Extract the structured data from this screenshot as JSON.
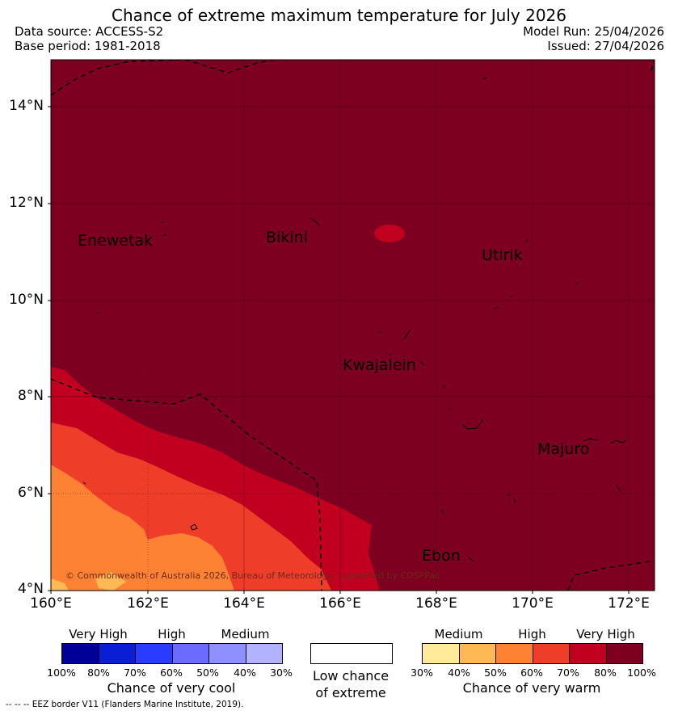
{
  "title": "Chance of extreme maximum temperature for July 2026",
  "meta": {
    "data_source": "Data source: ACCESS-S2",
    "base_period": "Base period: 1981-2018",
    "model_run": "Model Run: 25/04/2026",
    "issued": "Issued: 27/04/2026"
  },
  "axes": {
    "lat_ticks": [
      "14°N",
      "12°N",
      "10°N",
      "8°N",
      "6°N",
      "4°N"
    ],
    "lon_ticks": [
      "160°E",
      "162°E",
      "164°E",
      "166°E",
      "168°E",
      "170°E",
      "172°E"
    ]
  },
  "places": {
    "enewetak": "Enewetak",
    "bikini": "Bikini",
    "utirik": "Utirik",
    "kwajalein": "Kwajalein",
    "majuro": "Majuro",
    "ebon": "Ebon"
  },
  "copyright": "© Commonwealth of Australia 2026, Bureau of Meteorology, supported by COSPPac",
  "legend": {
    "cool": {
      "headings": [
        "Very High",
        "High",
        "Medium"
      ],
      "percents": [
        "100%",
        "80%",
        "70%",
        "60%",
        "50%",
        "40%",
        "30%"
      ],
      "colors": [
        "#000099",
        "#0a1ed6",
        "#2a3cff",
        "#6b6bff",
        "#8f8fff",
        "#b2b2ff"
      ],
      "title": "Chance of very cool"
    },
    "low": {
      "line1": "Low chance",
      "line2": "of extreme"
    },
    "warm": {
      "headings": [
        "Medium",
        "High",
        "Very High"
      ],
      "percents": [
        "30%",
        "40%",
        "50%",
        "60%",
        "70%",
        "80%",
        "100%"
      ],
      "colors": [
        "#ffeb99",
        "#feb954",
        "#fd8234",
        "#ee3e2a",
        "#c0001e",
        "#7d0020"
      ],
      "title": "Chance of very warm"
    }
  },
  "footnote": "-- -- -- EEZ border V11 (Flanders Marine Institute, 2019)."
}
